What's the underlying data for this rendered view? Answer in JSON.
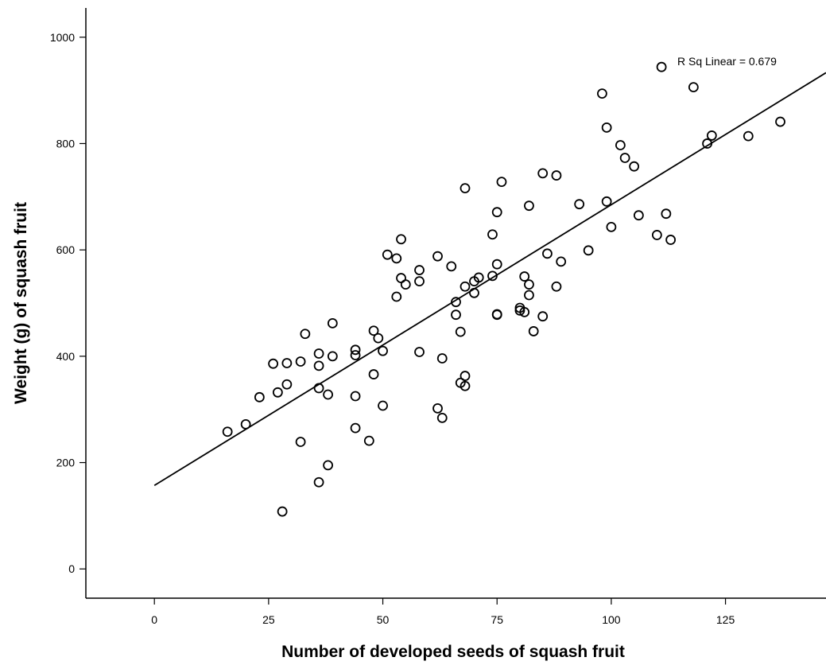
{
  "chart_data": {
    "type": "scatter",
    "title": "",
    "xlabel": "Number of developed seeds of squash fruit",
    "ylabel": "Weight (g) of squash fruit",
    "xlim": [
      -15,
      147
    ],
    "ylim": [
      -55,
      1055
    ],
    "x_ticks": [
      0,
      25,
      50,
      75,
      100,
      125
    ],
    "y_ticks": [
      0,
      200,
      400,
      600,
      800,
      1000
    ],
    "x_tick_labels": [
      "0",
      "25",
      "50",
      "75",
      "100",
      "125"
    ],
    "y_tick_labels": [
      "0",
      "200",
      "400",
      "600",
      "800",
      "1000"
    ],
    "grid": false,
    "legend": "none",
    "annotation": "R Sq Linear = 0.679",
    "fit_line": {
      "intercept": 157,
      "slope": 5.28,
      "x_range": [
        0,
        147
      ]
    },
    "colors": {
      "background": "#ffffff",
      "axis": "#000000",
      "marker": "#000000",
      "fit_line": "#000000"
    },
    "series": [
      {
        "marker": "open-circle",
        "points": [
          [
            16,
            258
          ],
          [
            20,
            272
          ],
          [
            23,
            323
          ],
          [
            26,
            386
          ],
          [
            27,
            332
          ],
          [
            28,
            108
          ],
          [
            29,
            387
          ],
          [
            29,
            347
          ],
          [
            32,
            390
          ],
          [
            32,
            239
          ],
          [
            33,
            442
          ],
          [
            36,
            405
          ],
          [
            36,
            382
          ],
          [
            36,
            340
          ],
          [
            36,
            163
          ],
          [
            38,
            328
          ],
          [
            38,
            195
          ],
          [
            39,
            462
          ],
          [
            39,
            400
          ],
          [
            44,
            412
          ],
          [
            44,
            402
          ],
          [
            44,
            325
          ],
          [
            44,
            265
          ],
          [
            47,
            241
          ],
          [
            48,
            448
          ],
          [
            48,
            366
          ],
          [
            49,
            434
          ],
          [
            50,
            410
          ],
          [
            50,
            307
          ],
          [
            51,
            591
          ],
          [
            53,
            584
          ],
          [
            53,
            512
          ],
          [
            54,
            620
          ],
          [
            54,
            547
          ],
          [
            55,
            535
          ],
          [
            58,
            562
          ],
          [
            58,
            541
          ],
          [
            58,
            408
          ],
          [
            62,
            588
          ],
          [
            62,
            302
          ],
          [
            63,
            396
          ],
          [
            63,
            284
          ],
          [
            65,
            569
          ],
          [
            66,
            502
          ],
          [
            66,
            478
          ],
          [
            67,
            446
          ],
          [
            67,
            350
          ],
          [
            68,
            716
          ],
          [
            68,
            531
          ],
          [
            68,
            363
          ],
          [
            68,
            344
          ],
          [
            70,
            541
          ],
          [
            70,
            519
          ],
          [
            71,
            548
          ],
          [
            74,
            629
          ],
          [
            74,
            551
          ],
          [
            75,
            671
          ],
          [
            75,
            573
          ],
          [
            75,
            479
          ],
          [
            75,
            478
          ],
          [
            76,
            728
          ],
          [
            80,
            491
          ],
          [
            80,
            486
          ],
          [
            81,
            550
          ],
          [
            81,
            483
          ],
          [
            82,
            683
          ],
          [
            82,
            535
          ],
          [
            82,
            515
          ],
          [
            83,
            447
          ],
          [
            85,
            744
          ],
          [
            85,
            475
          ],
          [
            86,
            593
          ],
          [
            88,
            740
          ],
          [
            88,
            531
          ],
          [
            89,
            578
          ],
          [
            93,
            686
          ],
          [
            95,
            599
          ],
          [
            98,
            894
          ],
          [
            99,
            830
          ],
          [
            99,
            691
          ],
          [
            100,
            643
          ],
          [
            102,
            797
          ],
          [
            103,
            773
          ],
          [
            105,
            757
          ],
          [
            106,
            665
          ],
          [
            110,
            628
          ],
          [
            111,
            944
          ],
          [
            112,
            668
          ],
          [
            113,
            619
          ],
          [
            118,
            906
          ],
          [
            121,
            800
          ],
          [
            122,
            815
          ],
          [
            130,
            814
          ],
          [
            137,
            841
          ]
        ]
      }
    ]
  }
}
